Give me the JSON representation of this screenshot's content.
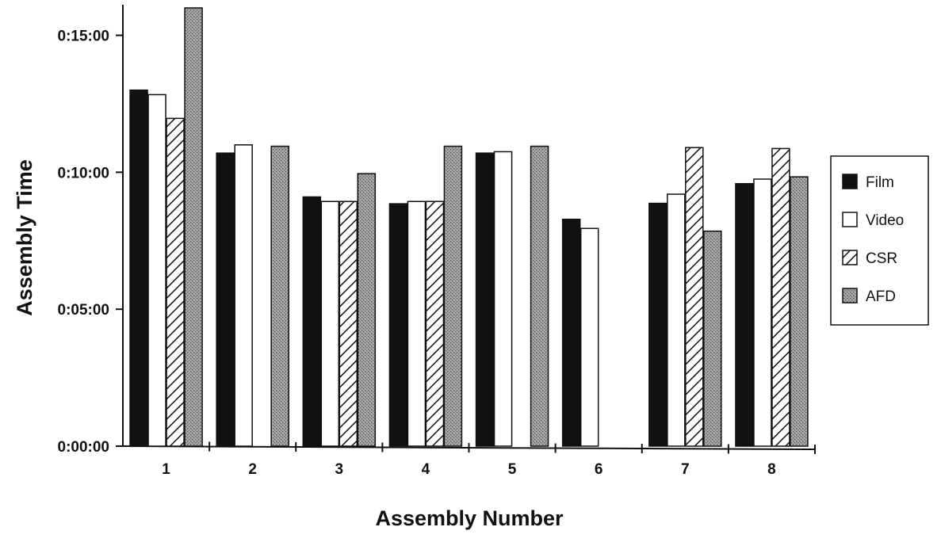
{
  "chart_data": {
    "type": "bar",
    "xlabel": "Assembly Number",
    "ylabel": "Assembly Time",
    "categories": [
      "1",
      "2",
      "3",
      "4",
      "5",
      "6",
      "7",
      "8"
    ],
    "y_unit": "seconds",
    "yticks": [
      {
        "value": 0,
        "label": "0:00:00"
      },
      {
        "value": 300,
        "label": "0:05:00"
      },
      {
        "value": 600,
        "label": "0:10:00"
      },
      {
        "value": 900,
        "label": "0:15:00"
      }
    ],
    "ylim": [
      0,
      960
    ],
    "legend_position": "right",
    "series": [
      {
        "name": "Film",
        "fill": "solid-black",
        "color": "#111111",
        "values": [
          780,
          642,
          546,
          531,
          642,
          497,
          532,
          575
        ]
      },
      {
        "name": "Video",
        "fill": "white",
        "color": "#ffffff",
        "values": [
          770,
          660,
          536,
          536,
          645,
          477,
          552,
          585
        ]
      },
      {
        "name": "CSR",
        "fill": "diagonal-hatch",
        "color": "#ffffff",
        "values": [
          718,
          null,
          536,
          536,
          null,
          null,
          654,
          652
        ]
      },
      {
        "name": "AFD",
        "fill": "stipple-gray",
        "color": "#9a9a9a",
        "values": [
          960,
          657,
          597,
          657,
          657,
          null,
          471,
          590
        ]
      }
    ]
  }
}
